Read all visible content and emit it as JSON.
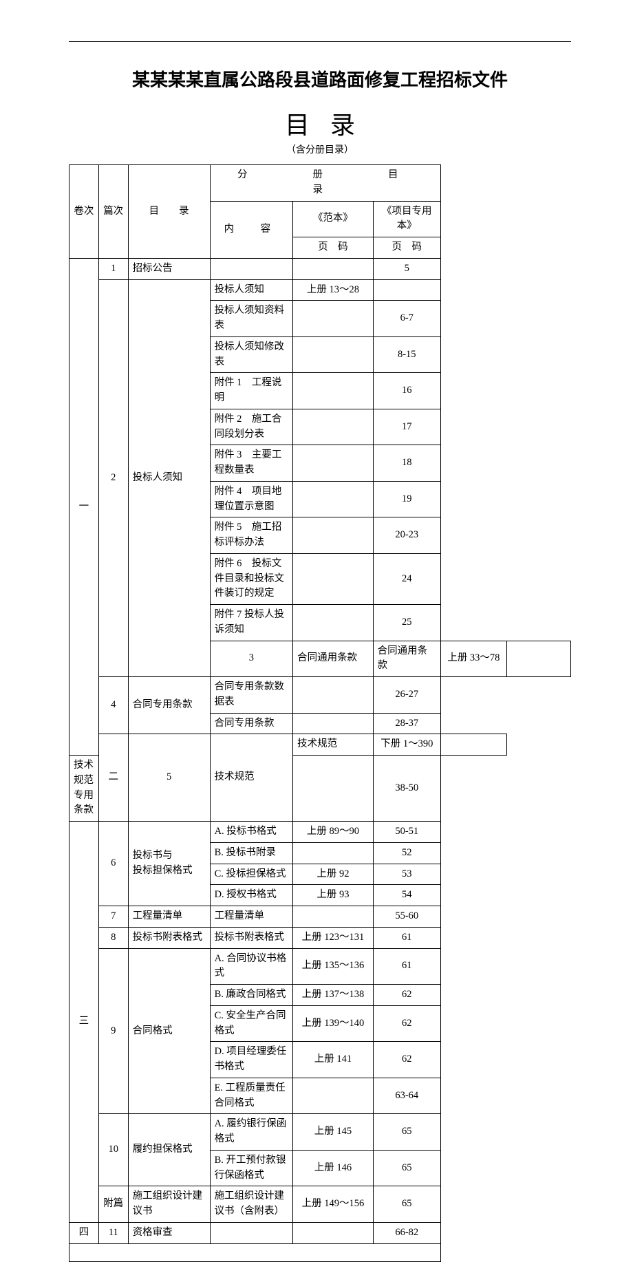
{
  "document": {
    "title": "某某某某直属公路段县道路面修复工程招标文件",
    "toc_heading": "目录",
    "toc_sub": "（含分册目录）"
  },
  "headers": {
    "volume": "卷次",
    "chapter": "篇次",
    "toc": "目　　录",
    "sub_toc": "分　　册　　目　　录",
    "content": "内　容",
    "p1_top": "《范本》",
    "p2_top": "《项目专用本》",
    "page_code": "页　码"
  },
  "rows": [
    {
      "vol": "一",
      "volspan": 15,
      "ch": "1",
      "chspan": 1,
      "name": "招标公告",
      "namespan": 1,
      "content": "",
      "p1": "",
      "p2": "5"
    },
    {
      "ch": "2",
      "chspan": 11,
      "name": "投标人须知",
      "namespan": 11,
      "content": "投标人须知",
      "p1": "上册 13～28",
      "p2": ""
    },
    {
      "content": "投标人须知资料表",
      "p1": "",
      "p2": "6-7"
    },
    {
      "content": "投标人须知修改表",
      "p1": "",
      "p2": "8-15"
    },
    {
      "content": "附件 1　工程说明",
      "p1": "",
      "p2": "16"
    },
    {
      "content": "附件 2　施工合同段划分表",
      "p1": "",
      "p2": "17"
    },
    {
      "content": "附件 3　主要工程数量表",
      "p1": "",
      "p2": "18"
    },
    {
      "content": "附件 4　项目地理位置示意图",
      "p1": "",
      "p2": "19"
    },
    {
      "content": "附件 5　施工招标评标办法",
      "p1": "",
      "p2": "20-23"
    },
    {
      "content": "附件 6　投标文件目录和投标文件装订的规定",
      "p1": "",
      "p2": "24",
      "tall": true
    },
    {
      "content": "附件 7 投标人投诉须知",
      "p1": "",
      "p2": "25"
    },
    {
      "ch": "3",
      "chspan": 1,
      "name": "合同通用条款",
      "namespan": 1,
      "content": "合同通用条款",
      "p1": "上册 33～78",
      "p2": ""
    },
    {
      "ch": "4",
      "chspan": 2,
      "name": "合同专用条款",
      "namespan": 2,
      "content": "合同专用条款数据表",
      "p1": "",
      "p2": "26-27"
    },
    {
      "content": "合同专用条款",
      "p1": "",
      "p2": "28-37"
    },
    {
      "vol": "二",
      "volspan": 2,
      "ch": "5",
      "chspan": 2,
      "name": "技术规范",
      "namespan": 2,
      "content": "技术规范",
      "p1": "下册 1～390",
      "p2": ""
    },
    {
      "content": "技术规范专用条款",
      "p1": "",
      "p2": "38-50"
    },
    {
      "vol": "三",
      "volspan": 14,
      "ch": "6",
      "chspan": 4,
      "name": "投标书与\n投标担保格式",
      "namespan": 4,
      "content": "A. 投标书格式",
      "p1": "上册 89～90",
      "p2": "50-51"
    },
    {
      "content": "B. 投标书附录",
      "p1": "",
      "p2": "52"
    },
    {
      "content": "C. 投标担保格式",
      "p1": "上册 92",
      "p2": "53"
    },
    {
      "content": "D. 授权书格式",
      "p1": "上册 93",
      "p2": "54"
    },
    {
      "ch": "7",
      "chspan": 1,
      "name": "工程量清单",
      "namespan": 1,
      "content": "工程量清单",
      "p1": "",
      "p2": "55-60"
    },
    {
      "ch": "8",
      "chspan": 1,
      "name": "投标书附表格式",
      "namespan": 1,
      "content": "投标书附表格式",
      "p1": "上册 123～131",
      "p2": "61"
    },
    {
      "ch": "9",
      "chspan": 5,
      "name": "合同格式",
      "namespan": 5,
      "content": "A. 合同协议书格式",
      "p1": "上册 135～136",
      "p2": "61"
    },
    {
      "content": "B. 廉政合同格式",
      "p1": "上册 137～138",
      "p2": "62"
    },
    {
      "content": "C. 安全生产合同格式",
      "p1": "上册 139～140",
      "p2": "62"
    },
    {
      "content": "D. 项目经理委任书格式",
      "p1": "上册 141",
      "p2": "62"
    },
    {
      "content": "E. 工程质量责任合同格式",
      "p1": "",
      "p2": "63-64"
    },
    {
      "ch": "10",
      "chspan": 2,
      "name": "履约担保格式",
      "namespan": 2,
      "content": "A. 履约银行保函格式",
      "p1": "上册 145",
      "p2": "65"
    },
    {
      "content": "B. 开工预付款银行保函格式",
      "p1": "上册 146",
      "p2": "65"
    },
    {
      "ch": "附篇",
      "chspan": 1,
      "name": "施工组织设计建议书",
      "namespan": 1,
      "content": "施工组织设计建议书（含附表）",
      "p1": "上册 149～156",
      "p2": "65"
    },
    {
      "vol": "四",
      "volspan": 1,
      "ch": "11",
      "chspan": 1,
      "name": "资格审查",
      "namespan": 1,
      "content": "",
      "p1": "",
      "p2": "66-82"
    }
  ],
  "style": {
    "font_family": "SimSun",
    "title_fontsize": 26,
    "toc_heading_fontsize": 36,
    "body_fontsize": 14.5,
    "border_color": "#000000",
    "background": "#ffffff",
    "text_color": "#000000"
  }
}
